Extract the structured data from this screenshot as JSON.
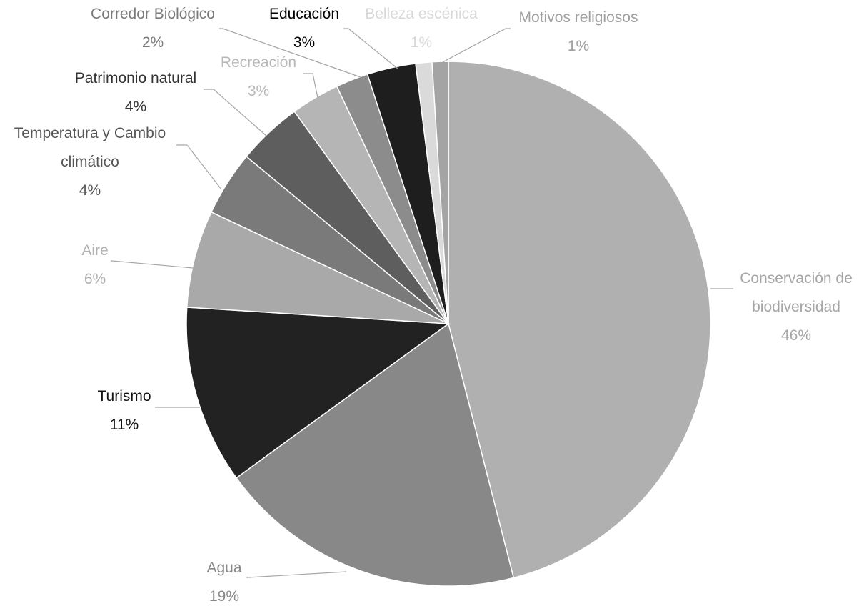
{
  "chart_data": {
    "type": "pie",
    "title": "",
    "start_angle_deg": 0,
    "direction": "clockwise",
    "slices": [
      {
        "label": "Conservación de biodiversidad",
        "label_lines": [
          "Conservación de",
          "biodiversidad"
        ],
        "value": 46,
        "value_label": "46%",
        "color": "#b0b0b0",
        "label_color": "#a6a6a6"
      },
      {
        "label": "Agua",
        "label_lines": [
          "Agua"
        ],
        "value": 19,
        "value_label": "19%",
        "color": "#888888",
        "label_color": "#888888"
      },
      {
        "label": "Turismo",
        "label_lines": [
          "Turismo"
        ],
        "value": 11,
        "value_label": "11%",
        "color": "#222222",
        "label_color": "#111111"
      },
      {
        "label": "Aire",
        "label_lines": [
          "Aire"
        ],
        "value": 6,
        "value_label": "6%",
        "color": "#a9a9a9",
        "label_color": "#b0b0b0"
      },
      {
        "label": "Temperatura y Cambio climático",
        "label_lines": [
          "Temperatura y Cambio",
          "climático"
        ],
        "value": 4,
        "value_label": "4%",
        "color": "#7a7a7a",
        "label_color": "#555555"
      },
      {
        "label": "Patrimonio natural",
        "label_lines": [
          "Patrimonio natural"
        ],
        "value": 4,
        "value_label": "4%",
        "color": "#5e5e5e",
        "label_color": "#333333"
      },
      {
        "label": "Recreación",
        "label_lines": [
          "Recreación"
        ],
        "value": 3,
        "value_label": "3%",
        "color": "#b5b5b5",
        "label_color": "#b8b8b8"
      },
      {
        "label": "Corredor Biológico",
        "label_lines": [
          "Corredor Biológico"
        ],
        "value": 2,
        "value_label": "2%",
        "color": "#8c8c8c",
        "label_color": "#7a7a7a"
      },
      {
        "label": "Educación",
        "label_lines": [
          "Educación"
        ],
        "value": 3,
        "value_label": "3%",
        "color": "#1e1e1e",
        "label_color": "#000000"
      },
      {
        "label": "Belleza escénica",
        "label_lines": [
          "Belleza escénica"
        ],
        "value": 1,
        "value_label": "1%",
        "color": "#dadada",
        "label_color": "#d8d8d8"
      },
      {
        "label": "Motivos religiosos",
        "label_lines": [
          "Motivos religiosos"
        ],
        "value": 1,
        "value_label": "1%",
        "color": "#a4a4a4",
        "label_color": "#a0a0a0"
      }
    ],
    "legend": "none",
    "data_labels": "outside-with-leader-lines"
  }
}
